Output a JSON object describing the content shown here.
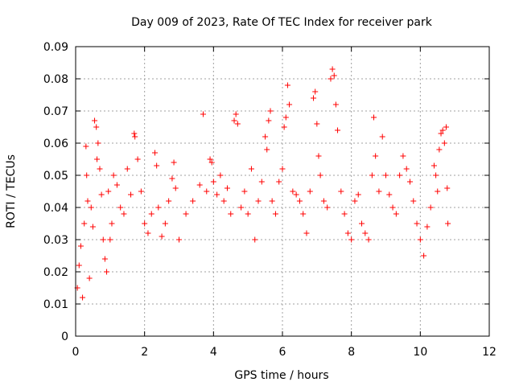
{
  "chart_data": {
    "type": "scatter",
    "title": "Day 009 of 2023, Rate Of TEC Index for receiver park",
    "xlabel": "GPS time / hours",
    "ylabel": "ROTI / TECUs",
    "xlim": [
      0,
      12
    ],
    "ylim": [
      0,
      0.09
    ],
    "xticks": [
      "0",
      "2",
      "4",
      "6",
      "8",
      "10",
      "12"
    ],
    "yticks": [
      "0",
      "0.01",
      "0.02",
      "0.03",
      "0.04",
      "0.05",
      "0.06",
      "0.07",
      "0.08",
      "0.09"
    ],
    "grid": true,
    "series": [
      {
        "color": "#ff0000",
        "marker": "plus",
        "points": [
          [
            0.05,
            0.015
          ],
          [
            0.1,
            0.022
          ],
          [
            0.15,
            0.028
          ],
          [
            0.2,
            0.012
          ],
          [
            0.25,
            0.035
          ],
          [
            0.3,
            0.059
          ],
          [
            0.32,
            0.05
          ],
          [
            0.35,
            0.042
          ],
          [
            0.4,
            0.018
          ],
          [
            0.45,
            0.04
          ],
          [
            0.5,
            0.034
          ],
          [
            0.55,
            0.067
          ],
          [
            0.6,
            0.065
          ],
          [
            0.62,
            0.055
          ],
          [
            0.65,
            0.06
          ],
          [
            0.7,
            0.052
          ],
          [
            0.75,
            0.044
          ],
          [
            0.8,
            0.03
          ],
          [
            0.85,
            0.024
          ],
          [
            0.9,
            0.02
          ],
          [
            0.95,
            0.045
          ],
          [
            1.0,
            0.03
          ],
          [
            1.05,
            0.035
          ],
          [
            1.1,
            0.05
          ],
          [
            1.2,
            0.047
          ],
          [
            1.3,
            0.04
          ],
          [
            1.4,
            0.038
          ],
          [
            1.5,
            0.052
          ],
          [
            1.6,
            0.044
          ],
          [
            1.7,
            0.063
          ],
          [
            1.72,
            0.062
          ],
          [
            1.8,
            0.055
          ],
          [
            1.9,
            0.045
          ],
          [
            2.0,
            0.035
          ],
          [
            2.1,
            0.032
          ],
          [
            2.2,
            0.038
          ],
          [
            2.3,
            0.057
          ],
          [
            2.35,
            0.053
          ],
          [
            2.4,
            0.04
          ],
          [
            2.5,
            0.031
          ],
          [
            2.6,
            0.035
          ],
          [
            2.7,
            0.042
          ],
          [
            2.8,
            0.049
          ],
          [
            2.85,
            0.054
          ],
          [
            2.9,
            0.046
          ],
          [
            3.0,
            0.03
          ],
          [
            3.2,
            0.038
          ],
          [
            3.4,
            0.042
          ],
          [
            3.6,
            0.047
          ],
          [
            3.7,
            0.069
          ],
          [
            3.8,
            0.045
          ],
          [
            3.9,
            0.055
          ],
          [
            3.95,
            0.054
          ],
          [
            4.0,
            0.048
          ],
          [
            4.1,
            0.044
          ],
          [
            4.2,
            0.05
          ],
          [
            4.3,
            0.042
          ],
          [
            4.4,
            0.046
          ],
          [
            4.5,
            0.038
          ],
          [
            4.6,
            0.067
          ],
          [
            4.65,
            0.069
          ],
          [
            4.7,
            0.066
          ],
          [
            4.8,
            0.04
          ],
          [
            4.9,
            0.045
          ],
          [
            5.0,
            0.038
          ],
          [
            5.1,
            0.052
          ],
          [
            5.2,
            0.03
          ],
          [
            5.3,
            0.042
          ],
          [
            5.4,
            0.048
          ],
          [
            5.5,
            0.062
          ],
          [
            5.55,
            0.058
          ],
          [
            5.6,
            0.067
          ],
          [
            5.65,
            0.07
          ],
          [
            5.7,
            0.042
          ],
          [
            5.8,
            0.038
          ],
          [
            5.9,
            0.048
          ],
          [
            6.0,
            0.052
          ],
          [
            6.05,
            0.065
          ],
          [
            6.1,
            0.068
          ],
          [
            6.15,
            0.078
          ],
          [
            6.2,
            0.072
          ],
          [
            6.3,
            0.045
          ],
          [
            6.4,
            0.044
          ],
          [
            6.5,
            0.042
          ],
          [
            6.6,
            0.038
          ],
          [
            6.7,
            0.032
          ],
          [
            6.8,
            0.045
          ],
          [
            6.9,
            0.074
          ],
          [
            6.95,
            0.076
          ],
          [
            7.0,
            0.066
          ],
          [
            7.05,
            0.056
          ],
          [
            7.1,
            0.05
          ],
          [
            7.2,
            0.042
          ],
          [
            7.3,
            0.04
          ],
          [
            7.4,
            0.08
          ],
          [
            7.45,
            0.083
          ],
          [
            7.5,
            0.081
          ],
          [
            7.55,
            0.072
          ],
          [
            7.6,
            0.064
          ],
          [
            7.7,
            0.045
          ],
          [
            7.8,
            0.038
          ],
          [
            7.9,
            0.032
          ],
          [
            8.0,
            0.03
          ],
          [
            8.1,
            0.042
          ],
          [
            8.2,
            0.044
          ],
          [
            8.3,
            0.035
          ],
          [
            8.4,
            0.032
          ],
          [
            8.5,
            0.03
          ],
          [
            8.6,
            0.05
          ],
          [
            8.65,
            0.068
          ],
          [
            8.7,
            0.056
          ],
          [
            8.8,
            0.045
          ],
          [
            8.9,
            0.062
          ],
          [
            9.0,
            0.05
          ],
          [
            9.1,
            0.044
          ],
          [
            9.2,
            0.04
          ],
          [
            9.3,
            0.038
          ],
          [
            9.4,
            0.05
          ],
          [
            9.5,
            0.056
          ],
          [
            9.6,
            0.052
          ],
          [
            9.7,
            0.048
          ],
          [
            9.8,
            0.042
          ],
          [
            9.9,
            0.035
          ],
          [
            10.0,
            0.03
          ],
          [
            10.1,
            0.025
          ],
          [
            10.2,
            0.034
          ],
          [
            10.3,
            0.04
          ],
          [
            10.4,
            0.053
          ],
          [
            10.45,
            0.05
          ],
          [
            10.5,
            0.045
          ],
          [
            10.55,
            0.058
          ],
          [
            10.6,
            0.063
          ],
          [
            10.65,
            0.064
          ],
          [
            10.7,
            0.06
          ],
          [
            10.75,
            0.065
          ],
          [
            10.78,
            0.046
          ],
          [
            10.8,
            0.035
          ]
        ]
      }
    ]
  }
}
